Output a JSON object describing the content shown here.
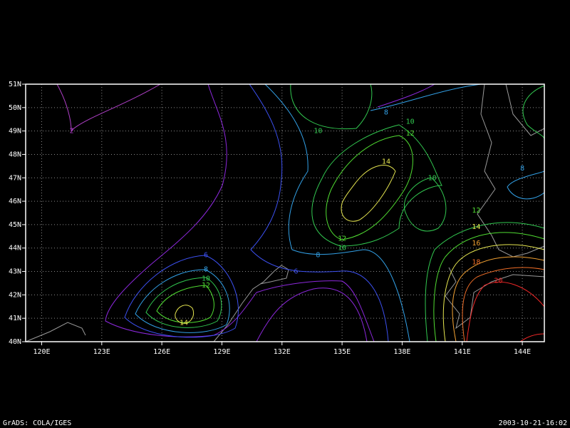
{
  "map": {
    "lon_lim": [
      119.2,
      145.1
    ],
    "lat_lim": [
      40,
      51
    ],
    "grid": true,
    "lon_ticks": [
      {
        "value": 120,
        "label": "120E"
      },
      {
        "value": 123,
        "label": "123E"
      },
      {
        "value": 126,
        "label": "126E"
      },
      {
        "value": 129,
        "label": "129E"
      },
      {
        "value": 132,
        "label": "132E"
      },
      {
        "value": 135,
        "label": "135E"
      },
      {
        "value": 138,
        "label": "138E"
      },
      {
        "value": 141,
        "label": "141E"
      },
      {
        "value": 144,
        "label": "144E"
      }
    ],
    "lat_ticks": [
      {
        "value": 40,
        "label": "40N"
      },
      {
        "value": 41,
        "label": "41N"
      },
      {
        "value": 42,
        "label": "42N"
      },
      {
        "value": 43,
        "label": "43N"
      },
      {
        "value": 44,
        "label": "44N"
      },
      {
        "value": 45,
        "label": "45N"
      },
      {
        "value": 46,
        "label": "46N"
      },
      {
        "value": 47,
        "label": "47N"
      },
      {
        "value": 48,
        "label": "48N"
      },
      {
        "value": 49,
        "label": "49N"
      },
      {
        "value": 50,
        "label": "50N"
      },
      {
        "value": 51,
        "label": "51N"
      }
    ],
    "contour_labels": [
      {
        "value": 2,
        "lon": 121.5,
        "lat": 49.0,
        "color": "#b040c8"
      },
      {
        "value": 14,
        "lon": 127.1,
        "lat": 40.8,
        "color": "#e6e650"
      },
      {
        "value": 12,
        "lon": 128.2,
        "lat": 42.4,
        "color": "#50dc32"
      },
      {
        "value": 10,
        "lon": 128.2,
        "lat": 42.7,
        "color": "#32c850"
      },
      {
        "value": 8,
        "lon": 128.2,
        "lat": 43.1,
        "color": "#32a0e6"
      },
      {
        "value": 6,
        "lon": 128.2,
        "lat": 43.7,
        "color": "#3c50f0"
      },
      {
        "value": 6,
        "lon": 132.7,
        "lat": 43.0,
        "color": "#3c50f0"
      },
      {
        "value": 8,
        "lon": 133.8,
        "lat": 43.7,
        "color": "#32a0e6"
      },
      {
        "value": 10,
        "lon": 135.0,
        "lat": 44.0,
        "color": "#32c850"
      },
      {
        "value": 12,
        "lon": 135.0,
        "lat": 44.4,
        "color": "#50dc32"
      },
      {
        "value": 14,
        "lon": 137.2,
        "lat": 47.7,
        "color": "#e6e650"
      },
      {
        "value": 10,
        "lon": 133.8,
        "lat": 49.0,
        "color": "#32c850"
      },
      {
        "value": 8,
        "lon": 137.2,
        "lat": 49.8,
        "color": "#32a0e6"
      },
      {
        "value": 10,
        "lon": 138.4,
        "lat": 49.4,
        "color": "#32c850"
      },
      {
        "value": 12,
        "lon": 138.4,
        "lat": 48.9,
        "color": "#50dc32"
      },
      {
        "value": 10,
        "lon": 139.5,
        "lat": 47.0,
        "color": "#32c850"
      },
      {
        "value": 8,
        "lon": 144.0,
        "lat": 47.4,
        "color": "#32a0e6"
      },
      {
        "value": 12,
        "lon": 141.7,
        "lat": 45.6,
        "color": "#50dc32"
      },
      {
        "value": 14,
        "lon": 141.7,
        "lat": 44.9,
        "color": "#e6e650"
      },
      {
        "value": 16,
        "lon": 141.7,
        "lat": 44.2,
        "color": "#f0a032"
      },
      {
        "value": 18,
        "lon": 141.7,
        "lat": 43.4,
        "color": "#f06e28"
      },
      {
        "value": 20,
        "lon": 142.8,
        "lat": 42.6,
        "color": "#f02828"
      }
    ]
  },
  "footer": {
    "left": "GrADS: COLA/IGES",
    "right": "2003-10-21-16:02"
  }
}
